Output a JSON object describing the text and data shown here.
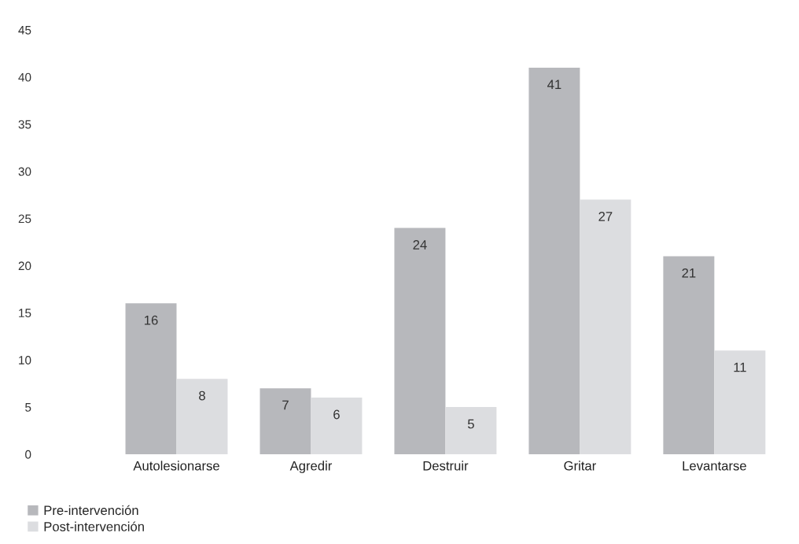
{
  "chart_data": {
    "type": "bar",
    "categories": [
      "Autolesionarse",
      "Agredir",
      "Destruir",
      "Gritar",
      "Levantarse"
    ],
    "series": [
      {
        "name": "Pre-intervención",
        "color": "#b7b8bc",
        "values": [
          16,
          7,
          24,
          41,
          21
        ]
      },
      {
        "name": "Post-intervención",
        "color": "#dcdde0",
        "values": [
          8,
          6,
          5,
          27,
          11
        ]
      }
    ],
    "ylim": [
      0,
      45
    ],
    "yticks": [
      0,
      5,
      10,
      15,
      20,
      25,
      30,
      35,
      40,
      45
    ],
    "data_labels": true,
    "grid": false,
    "legend": "bottom left"
  }
}
